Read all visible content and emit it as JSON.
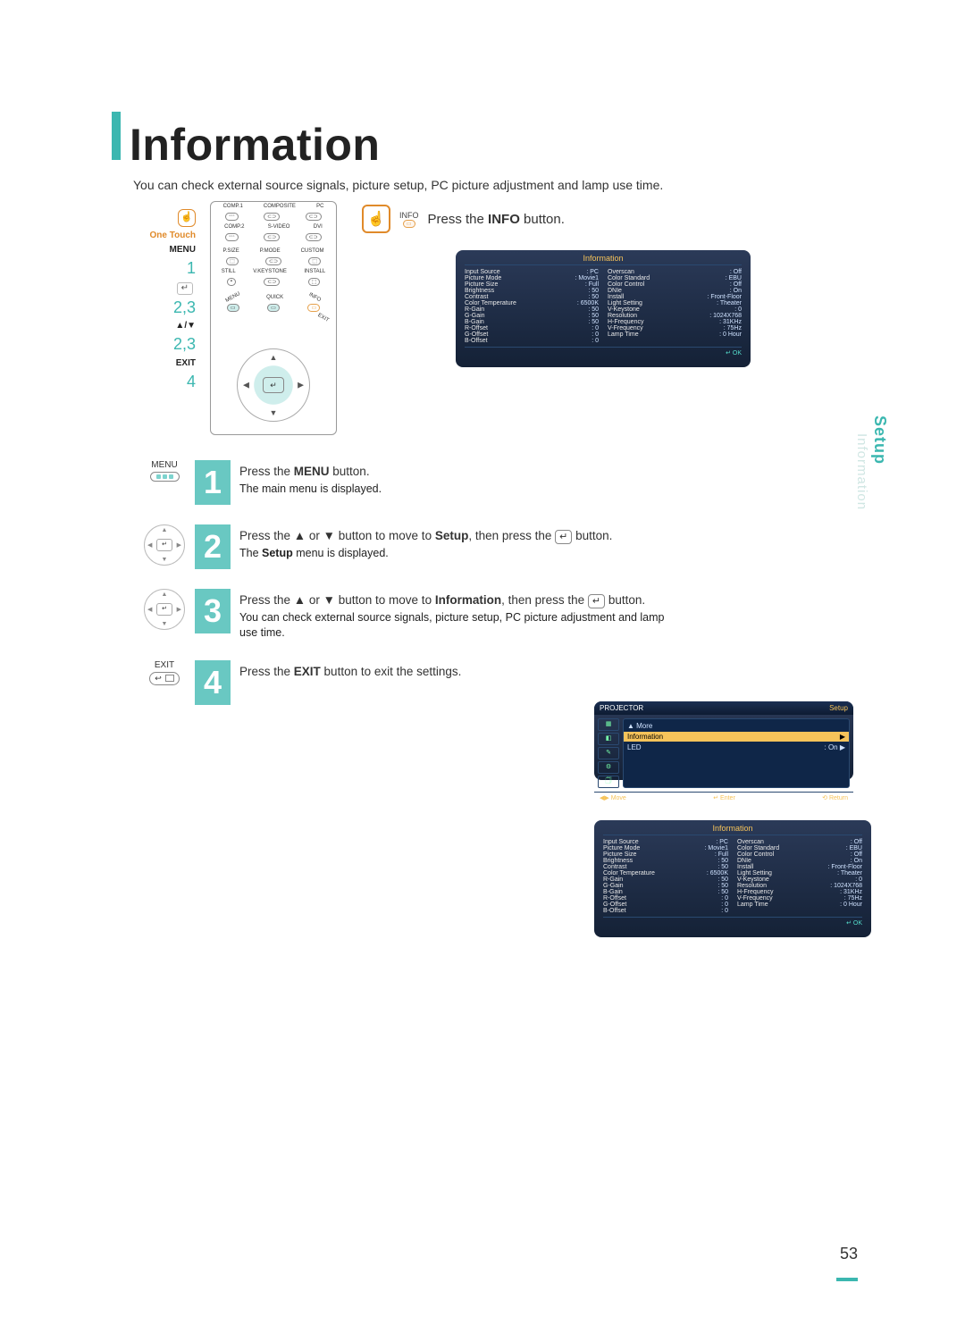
{
  "title": "Information",
  "subtitle": "You can check external source signals, picture setup, PC picture adjustment and lamp use time.",
  "page_number": "53",
  "sidetab": {
    "main": "Setup",
    "sub": "Information"
  },
  "callouts": {
    "onetouch": "One Touch",
    "menu": "MENU",
    "n1": "1",
    "n23a": "2,3",
    "arrows": "▲/▼",
    "n23b": "2,3",
    "exit": "EXIT",
    "n4": "4"
  },
  "remote": {
    "row1": [
      "COMP.1",
      "COMPOSITE",
      "PC"
    ],
    "row2": [
      "COMP.2",
      "S-VIDEO",
      "DVI"
    ],
    "row3": [
      "P.SIZE",
      "P.MODE",
      "CUSTOM"
    ],
    "row4": [
      "STILL",
      "V.KEYSTONE",
      "INSTALL"
    ],
    "midLabels": [
      "MENU",
      "QUICK",
      "INFO",
      "EXIT"
    ],
    "enter": "↵"
  },
  "info_press": {
    "info_label": "INFO",
    "text_pre": "Press the ",
    "text_bold": "INFO",
    "text_post": " button."
  },
  "osd": {
    "title": "Information",
    "left": [
      [
        "Input Source",
        "PC"
      ],
      [
        "Picture Mode",
        "Movie1"
      ],
      [
        "Picture Size",
        "Full"
      ],
      [
        "Brightness",
        "50"
      ],
      [
        "Contrast",
        "50"
      ],
      [
        "Color Temperature",
        "6500K"
      ],
      [
        "R-Gain",
        "50"
      ],
      [
        "G-Gain",
        "50"
      ],
      [
        "B-Gain",
        "50"
      ],
      [
        "R-Offset",
        "0"
      ],
      [
        "G-Offset",
        "0"
      ],
      [
        "B-Offset",
        "0"
      ]
    ],
    "right": [
      [
        "Overscan",
        "Off"
      ],
      [
        "Color Standard",
        "EBU"
      ],
      [
        "Color Control",
        "Off"
      ],
      [
        "DNIe",
        "On"
      ],
      [
        "Install",
        "Front-Floor"
      ],
      [
        "Light Setting",
        "Theater"
      ],
      [
        "V-Keystone",
        "0"
      ],
      [
        "Resolution",
        "1024X768"
      ],
      [
        "H-Frequency",
        "31KHz"
      ],
      [
        "V-Frequency",
        "75Hz"
      ],
      [
        "Lamp Time",
        "0 Hour"
      ]
    ],
    "ok": "↵ OK",
    "colors": {
      "bg_top": "#2b3a58",
      "bg_bottom": "#142136",
      "title_color": "#f6c35a",
      "text_color": "#cfe2ff"
    }
  },
  "setup_menu": {
    "header_left": "PROJECTOR",
    "header_right": "Setup",
    "rows": [
      {
        "label": "▲ More",
        "value": ""
      },
      {
        "label": "Information",
        "value": "▶",
        "selected": true
      },
      {
        "label": "LED",
        "value": ": On   ▶"
      }
    ],
    "footer": [
      "◀▶ Move",
      "↵ Enter",
      "⟲ Return"
    ]
  },
  "steps": {
    "s1": {
      "num": "1",
      "icon_label": "MENU",
      "line1_pre": "Press the ",
      "line1_bold": "MENU",
      "line1_post": " button.",
      "sub": "The main menu is displayed."
    },
    "s2": {
      "num": "2",
      "line1": "Press the ▲ or ▼ button to move to ",
      "line1_bold": "Setup",
      "line1_post": ", then press the ",
      "enter": "↵",
      "line1_end": " button.",
      "sub_pre": "The ",
      "sub_bold": "Setup",
      "sub_post": " menu is displayed."
    },
    "s3": {
      "num": "3",
      "line1": "Press the ▲ or ▼ button to move to ",
      "line1_bold": "Information",
      "line1_post": ", then press the ",
      "enter": "↵",
      "line1_end": " button.",
      "sub": "You can check external source signals, picture setup, PC picture adjustment and lamp use time."
    },
    "s4": {
      "num": "4",
      "icon_label": "EXIT",
      "line1_pre": "Press the ",
      "line1_bold": "EXIT",
      "line1_post": " button to exit the settings."
    }
  }
}
